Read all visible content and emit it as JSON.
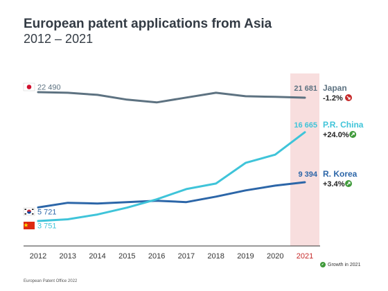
{
  "header": {
    "title": "European patent applications from Asia",
    "subtitle": "2012 – 2021"
  },
  "footer": {
    "source": "European Patent Office 2022"
  },
  "legend": {
    "growth_label": "Growth in 2021"
  },
  "colors": {
    "japan": "#5d7281",
    "china": "#3fc4d9",
    "korea": "#2c66a8",
    "highlight": "#f8dede",
    "growth_up": "#3f9a3a",
    "growth_down": "#c62828",
    "axis": "#333333"
  },
  "chart_data": {
    "type": "line",
    "x": [
      2012,
      2013,
      2014,
      2015,
      2016,
      2017,
      2018,
      2019,
      2020,
      2021
    ],
    "highlight_category": 2021,
    "series": [
      {
        "key": "japan",
        "name": "Japan",
        "flag": "japan-flag",
        "start_label": "22 490",
        "end_label": "21 681",
        "growth": "-1.2%",
        "growth_direction": "down",
        "values": [
          22490,
          22400,
          22100,
          21400,
          21000,
          21700,
          22400,
          21900,
          21800,
          21681
        ]
      },
      {
        "key": "china",
        "name": "P.R. China",
        "flag": "china-flag",
        "start_label": "3 751",
        "end_label": "16 665",
        "growth": "+24.0%",
        "growth_direction": "up",
        "values": [
          3751,
          4000,
          4700,
          5700,
          6900,
          8400,
          9200,
          12200,
          13400,
          16665
        ]
      },
      {
        "key": "korea",
        "name": "R. Korea",
        "flag": "korea-flag",
        "start_label": "5 721",
        "end_label": "9 394",
        "growth": "+3.4%",
        "growth_direction": "up",
        "values": [
          5721,
          6400,
          6300,
          6500,
          6700,
          6500,
          7300,
          8200,
          8900,
          9394
        ]
      }
    ]
  }
}
